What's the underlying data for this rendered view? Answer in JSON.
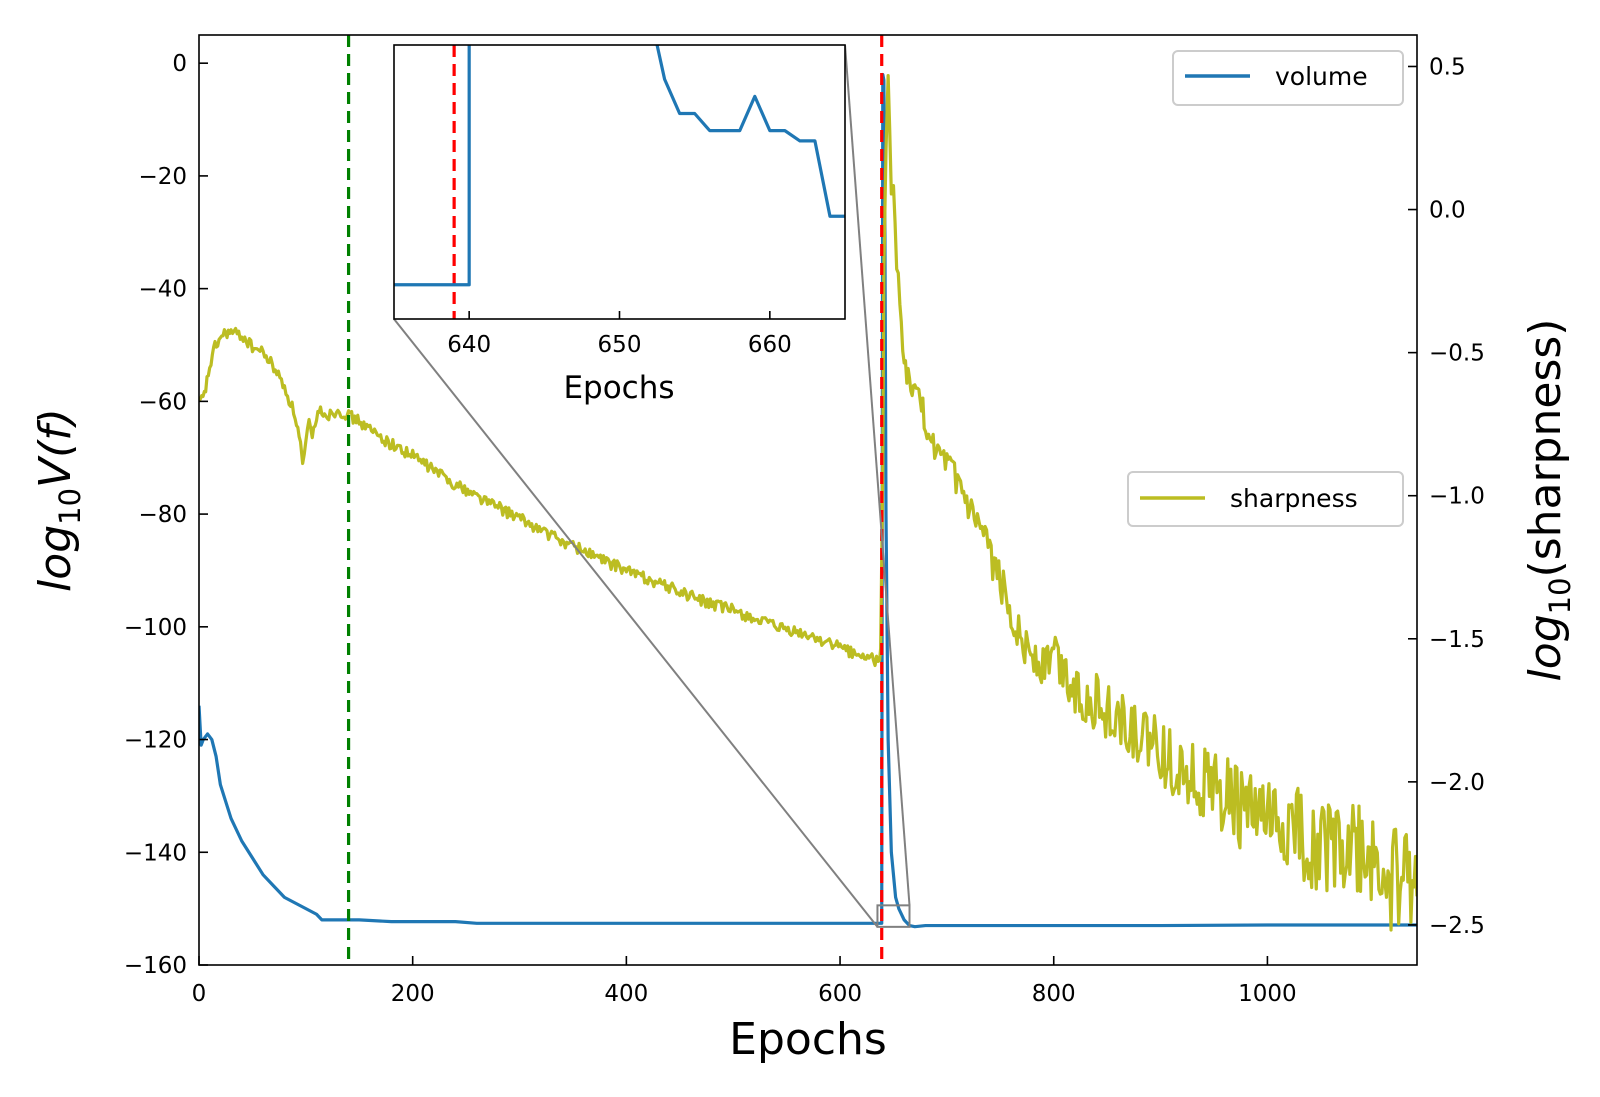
{
  "chart_data": {
    "type": "line",
    "xlabel": "Epochs",
    "ylabel_left": {
      "base": "log",
      "sub": "10",
      "rest": "V(f)"
    },
    "ylabel_right": {
      "base": "log",
      "sub": "10",
      "rest": "(sharpness)"
    },
    "xlim": [
      0,
      1140
    ],
    "ylim_left": [
      -160,
      5
    ],
    "ylim_right": [
      -2.64,
      0.61
    ],
    "x_ticks": [
      0,
      200,
      400,
      600,
      800,
      1000
    ],
    "y_left_ticks": [
      0,
      -20,
      -40,
      -60,
      -80,
      -100,
      -120,
      -140,
      -160
    ],
    "y_right_ticks": [
      0.5,
      0.0,
      -0.5,
      -1.0,
      -1.5,
      -2.0,
      -2.5
    ],
    "vlines": [
      {
        "x": 140,
        "color": "#008000",
        "style": "dashed"
      },
      {
        "x": 639,
        "color": "#ff0000",
        "style": "dashed"
      }
    ],
    "series": [
      {
        "name": "volume",
        "axis": "left",
        "color": "#1f77b4",
        "x": [
          0,
          2,
          4,
          8,
          12,
          16,
          20,
          25,
          30,
          40,
          50,
          60,
          70,
          80,
          90,
          100,
          110,
          115,
          130,
          150,
          180,
          200,
          240,
          260,
          300,
          400,
          500,
          600,
          638,
          639,
          640,
          641,
          642,
          643,
          645,
          648,
          652,
          655,
          660,
          665,
          670,
          680,
          700,
          800,
          900,
          1000,
          1100,
          1140
        ],
        "values": [
          -114,
          -121,
          -120,
          -119,
          -120,
          -123,
          -128,
          -131,
          -134,
          -138,
          -141,
          -144,
          -146,
          -148,
          -149,
          -150,
          -151,
          -152,
          -152,
          -152,
          -152.3,
          -152.3,
          -152.3,
          -152.6,
          -152.6,
          -152.6,
          -152.6,
          -152.6,
          -152.6,
          -152.6,
          -2,
          -3,
          -30,
          -80,
          -120,
          -140,
          -148,
          -150,
          -152,
          -153,
          -153.2,
          -153.0,
          -153.0,
          -153.0,
          -153.0,
          -152.9,
          -152.9,
          -152.9
        ]
      },
      {
        "name": "sharpness",
        "axis": "right",
        "color": "#bcbd22",
        "x": [
          0,
          5,
          10,
          15,
          20,
          25,
          30,
          40,
          50,
          60,
          70,
          80,
          90,
          95,
          97,
          100,
          103,
          106,
          110,
          115,
          120,
          130,
          140,
          150,
          160,
          180,
          200,
          220,
          240,
          260,
          280,
          300,
          320,
          340,
          360,
          380,
          400,
          420,
          440,
          460,
          480,
          500,
          520,
          540,
          560,
          580,
          600,
          620,
          637,
          638,
          639,
          640,
          641,
          643,
          645,
          648,
          650,
          653,
          656,
          660,
          665,
          670,
          675,
          680,
          690,
          700,
          710,
          720,
          730,
          740,
          750,
          760,
          770,
          780,
          790,
          800,
          820,
          840,
          860,
          880,
          900,
          920,
          940,
          960,
          980,
          1000,
          1020,
          1040,
          1060,
          1080,
          1100,
          1120,
          1140
        ],
        "values": [
          -0.68,
          -0.65,
          -0.55,
          -0.48,
          -0.45,
          -0.43,
          -0.43,
          -0.44,
          -0.48,
          -0.5,
          -0.55,
          -0.62,
          -0.72,
          -0.82,
          -0.9,
          -0.82,
          -0.75,
          -0.8,
          -0.72,
          -0.7,
          -0.72,
          -0.7,
          -0.72,
          -0.74,
          -0.77,
          -0.82,
          -0.86,
          -0.91,
          -0.96,
          -1.0,
          -1.04,
          -1.08,
          -1.12,
          -1.16,
          -1.19,
          -1.23,
          -1.26,
          -1.29,
          -1.32,
          -1.35,
          -1.38,
          -1.4,
          -1.43,
          -1.46,
          -1.48,
          -1.5,
          -1.53,
          -1.56,
          -1.58,
          -1.55,
          -1.2,
          -0.9,
          -0.2,
          0.2,
          0.48,
          0.05,
          0.1,
          -0.2,
          -0.3,
          -0.55,
          -0.6,
          -0.65,
          -0.65,
          -0.75,
          -0.85,
          -0.9,
          -0.95,
          -1.05,
          -1.12,
          -1.2,
          -1.3,
          -1.4,
          -1.5,
          -1.55,
          -1.6,
          -1.55,
          -1.68,
          -1.72,
          -1.78,
          -1.85,
          -1.9,
          -1.95,
          -2.0,
          -2.05,
          -2.1,
          -2.15,
          -2.18,
          -2.2,
          -2.22,
          -2.25,
          -2.3,
          -2.35,
          -2.4
        ],
        "noise": 0.08
      }
    ],
    "legend": [
      {
        "name": "volume",
        "color": "#1f77b4",
        "placement": "top-right"
      },
      {
        "name": "sharpness",
        "color": "#bcbd22",
        "placement": "center-right"
      }
    ],
    "inset": {
      "xlim": [
        635,
        665
      ],
      "ylim": [
        -152.7,
        -151.9
      ],
      "x_ticks": [
        640,
        650,
        660
      ],
      "xlabel": "Epochs",
      "vline": {
        "x": 639,
        "color": "#ff0000",
        "style": "dashed"
      },
      "series": {
        "name": "volume",
        "color": "#1f77b4",
        "x": [
          635,
          640,
          640,
          652,
          653,
          654,
          655,
          656,
          657,
          658,
          659,
          660,
          661,
          662,
          663,
          664,
          665
        ],
        "values": [
          -152.6,
          -152.6,
          -151.8,
          -151.8,
          -152.0,
          -152.1,
          -152.1,
          -152.15,
          -152.15,
          -152.15,
          -152.05,
          -152.15,
          -152.15,
          -152.18,
          -152.18,
          -152.4,
          -152.4
        ]
      }
    }
  }
}
